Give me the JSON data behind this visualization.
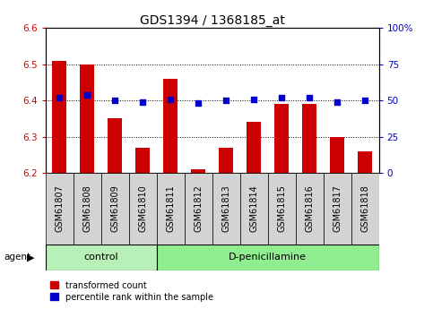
{
  "title": "GDS1394 / 1368185_at",
  "samples": [
    "GSM61807",
    "GSM61808",
    "GSM61809",
    "GSM61810",
    "GSM61811",
    "GSM61812",
    "GSM61813",
    "GSM61814",
    "GSM61815",
    "GSM61816",
    "GSM61817",
    "GSM61818"
  ],
  "red_values": [
    6.51,
    6.5,
    6.35,
    6.27,
    6.46,
    6.21,
    6.27,
    6.34,
    6.39,
    6.39,
    6.3,
    6.26
  ],
  "blue_values": [
    52,
    54,
    50,
    49,
    51,
    48,
    50,
    51,
    52,
    52,
    49,
    50
  ],
  "ylim_left": [
    6.2,
    6.6
  ],
  "ylim_right": [
    0,
    100
  ],
  "yticks_left": [
    6.2,
    6.3,
    6.4,
    6.5,
    6.6
  ],
  "yticks_right": [
    0,
    25,
    50,
    75,
    100
  ],
  "ytick_labels_right": [
    "0",
    "25",
    "50",
    "75",
    "100%"
  ],
  "hgrid_lines": [
    6.3,
    6.4,
    6.5
  ],
  "control_count": 4,
  "group_labels": [
    "control",
    "D-penicillamine"
  ],
  "legend_red": "transformed count",
  "legend_blue": "percentile rank within the sample",
  "agent_label": "agent",
  "red_color": "#cc0000",
  "blue_color": "#0000cc",
  "bar_width": 0.5,
  "sample_box_bg": "#d3d3d3",
  "control_bg": "#b8f0b8",
  "dpen_bg": "#90ee90",
  "title_fontsize": 10,
  "tick_fontsize": 7.5,
  "label_fontsize": 7,
  "group_fontsize": 8
}
